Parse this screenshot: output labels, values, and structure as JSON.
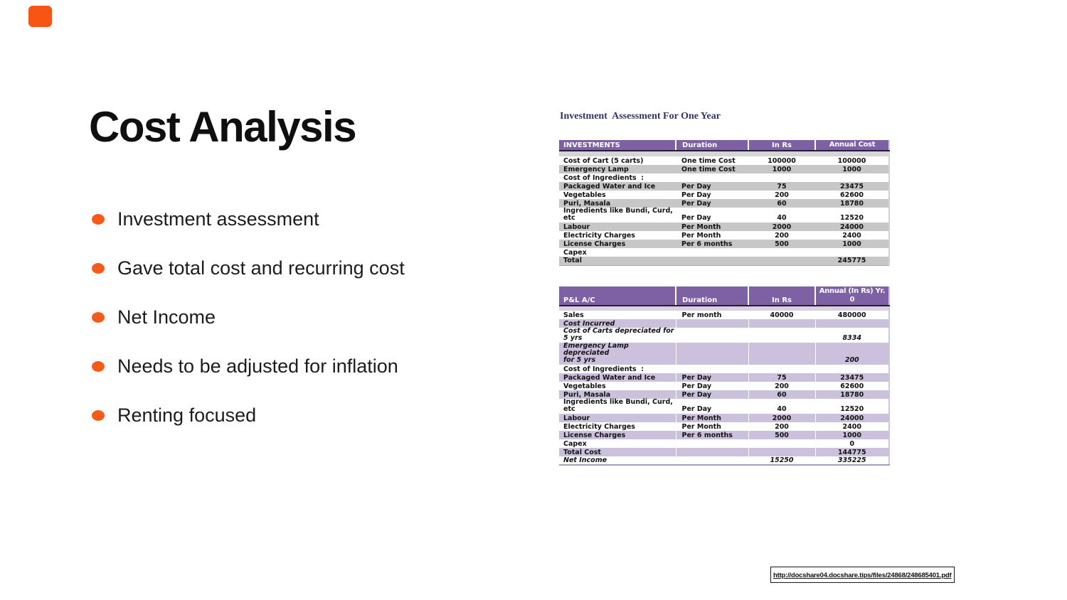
{
  "slide": {
    "title": "Cost Analysis",
    "bullets": [
      "Investment assessment",
      "Gave total cost and recurring cost",
      "Net Income",
      "Needs to be adjusted for inflation",
      "Renting focused"
    ]
  },
  "colors": {
    "accent_orange": "#F85A19",
    "table_header_purple": "#7D61A4",
    "table1_alt_row_gray": "#C7C7C7",
    "table2_alt_row_lavender": "#CCC1DC",
    "figure_heading_navy": "#333366",
    "title_black": "#0f0f0f"
  },
  "figure": {
    "heading": "Investment  Assessment For One Year",
    "source_url": "http://docshare04.docshare.tips/files/24868/248685401.pdf",
    "investments_table": {
      "columns": [
        "INVESTMENTS",
        "Duration",
        "In Rs",
        "Annual Cost"
      ],
      "rows": [
        {
          "spacer": true,
          "cells": [
            "",
            "",
            "",
            ""
          ]
        },
        {
          "cells": [
            "Cost of Cart (5 carts)",
            "One time Cost",
            "100000",
            "100000"
          ]
        },
        {
          "cells": [
            "Emergency Lamp",
            "One time Cost",
            "1000",
            "1000"
          ],
          "shaded": true
        },
        {
          "cells": [
            "Cost of Ingredients  :",
            "",
            "",
            ""
          ]
        },
        {
          "cells": [
            "Packaged Water and Ice",
            "Per Day",
            "75",
            "23475"
          ],
          "shaded": true
        },
        {
          "cells": [
            "Vegetables",
            "Per Day",
            "200",
            "62600"
          ]
        },
        {
          "cells": [
            "Puri, Masala",
            "Per Day",
            "60",
            "18780"
          ],
          "shaded": true
        },
        {
          "cells": [
            "Ingredients like Bundi, Curd,\netc",
            "Per Day",
            "40",
            "12520"
          ],
          "tall": true
        },
        {
          "cells": [
            "Labour",
            "Per Month",
            "2000",
            "24000"
          ],
          "shaded": true
        },
        {
          "cells": [
            "Electricity Charges",
            "Per Month",
            "200",
            "2400"
          ]
        },
        {
          "cells": [
            "License Charges",
            "Per 6 months",
            "500",
            "1000"
          ],
          "shaded": true
        },
        {
          "cells": [
            "Capex",
            "",
            "",
            ""
          ]
        },
        {
          "cells": [
            "Total",
            "",
            "",
            "245775"
          ],
          "shaded": true
        }
      ]
    },
    "pnl_table": {
      "columns": [
        "P&L A/C",
        "Duration",
        "In Rs",
        "Annual (In Rs) Yr.\n0"
      ],
      "rows": [
        {
          "spacer": true,
          "cells": [
            "",
            "",
            "",
            ""
          ]
        },
        {
          "cells": [
            "Sales",
            "Per month",
            "40000",
            "480000"
          ]
        },
        {
          "cells": [
            "Cost Incurred",
            "",
            "",
            ""
          ],
          "shaded": true,
          "italic": true
        },
        {
          "cells": [
            "Cost of Carts depreciated for\n5 yrs",
            "",
            "",
            "8334"
          ],
          "italic": true,
          "tall": true
        },
        {
          "cells": [
            "Emergency Lamp depreciated\nfor 5 yrs",
            "",
            "",
            "200"
          ],
          "shaded": true,
          "italic": true,
          "tall": true
        },
        {
          "cells": [
            "Cost of Ingredients  :",
            "",
            "",
            ""
          ]
        },
        {
          "cells": [
            "Packaged Water and Ice",
            "Per Day",
            "75",
            "23475"
          ],
          "shaded": true
        },
        {
          "cells": [
            "Vegetables",
            "Per Day",
            "200",
            "62600"
          ]
        },
        {
          "cells": [
            "Puri, Masala",
            "Per Day",
            "60",
            "18780"
          ],
          "shaded": true
        },
        {
          "cells": [
            "Ingredients like Bundi, Curd,\netc",
            "Per Day",
            "40",
            "12520"
          ],
          "tall": true
        },
        {
          "cells": [
            "Labour",
            "Per Month",
            "2000",
            "24000"
          ],
          "shaded": true
        },
        {
          "cells": [
            "Electricity Charges",
            "Per Month",
            "200",
            "2400"
          ]
        },
        {
          "cells": [
            "License Charges",
            "Per 6 months",
            "500",
            "1000"
          ],
          "shaded": true
        },
        {
          "cells": [
            "Capex",
            "",
            "",
            "0"
          ]
        },
        {
          "cells": [
            "Total Cost",
            "",
            "",
            "144775"
          ],
          "shaded": true
        },
        {
          "cells": [
            "Net Income",
            "",
            "15250",
            "335225"
          ],
          "italic": true
        }
      ]
    }
  }
}
